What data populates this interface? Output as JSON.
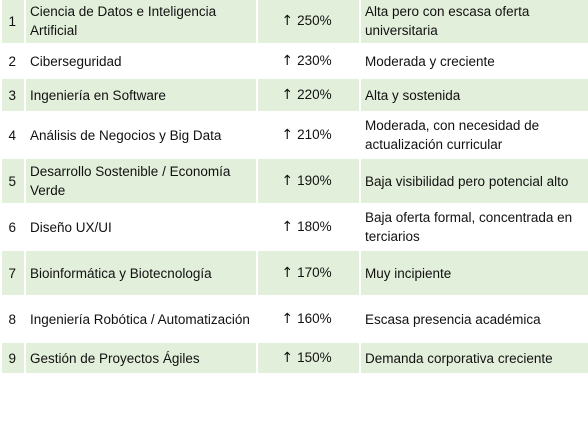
{
  "rows": [
    {
      "num": "1",
      "area": "Ciencia de Datos e Inteligencia Artificial",
      "arrow": "↑",
      "growth": "250%",
      "note": "Alta pero con escasa oferta universitaria"
    },
    {
      "num": "2",
      "area": "Ciberseguridad",
      "arrow": "↑",
      "growth": "230%",
      "note": "Moderada y creciente"
    },
    {
      "num": "3",
      "area": "Ingeniería en Software",
      "arrow": "↑",
      "growth": "220%",
      "note": "Alta y sostenida"
    },
    {
      "num": "4",
      "area": "Análisis de Negocios y Big Data",
      "arrow": "↑",
      "growth": "210%",
      "note": "Moderada, con necesidad de actualización curricular"
    },
    {
      "num": "5",
      "area": "Desarrollo Sostenible / Economía Verde",
      "arrow": "↑",
      "growth": "190%",
      "note": "Baja visibilidad  pero potencial alto"
    },
    {
      "num": "6",
      "area": "Diseño UX/UI",
      "arrow": "↑",
      "growth": "180%",
      "note": "Baja oferta formal, concentrada en terciarios"
    },
    {
      "num": "7",
      "area": "Bioinformática y Biotecnología",
      "arrow": "↑",
      "growth": "170%",
      "note": "Muy incipiente"
    },
    {
      "num": "8",
      "area": "Ingeniería Robótica / Automatización",
      "arrow": "↑",
      "growth": "160%",
      "note": "Escasa presencia académica"
    },
    {
      "num": "9",
      "area": "Gestión de Proyectos Ágiles",
      "arrow": "↑",
      "growth": "150%",
      "note": "Demanda corporativa creciente"
    }
  ],
  "colors": {
    "band": "#e2efda",
    "plain": "#ffffff",
    "text": "#111111"
  }
}
